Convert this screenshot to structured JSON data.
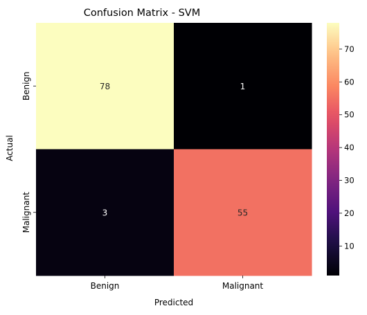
{
  "chart_data": {
    "type": "heatmap",
    "title": "Confusion Matrix - SVM",
    "xlabel": "Predicted",
    "ylabel": "Actual",
    "x_categories": [
      "Benign",
      "Malignant"
    ],
    "y_categories": [
      "Benign",
      "Malignant"
    ],
    "values": [
      [
        78,
        1
      ],
      [
        3,
        55
      ]
    ],
    "colormap": "magma",
    "colorbar": {
      "min": 1,
      "max": 78,
      "ticks": [
        10,
        20,
        30,
        40,
        50,
        60,
        70
      ]
    },
    "annotations": true
  }
}
